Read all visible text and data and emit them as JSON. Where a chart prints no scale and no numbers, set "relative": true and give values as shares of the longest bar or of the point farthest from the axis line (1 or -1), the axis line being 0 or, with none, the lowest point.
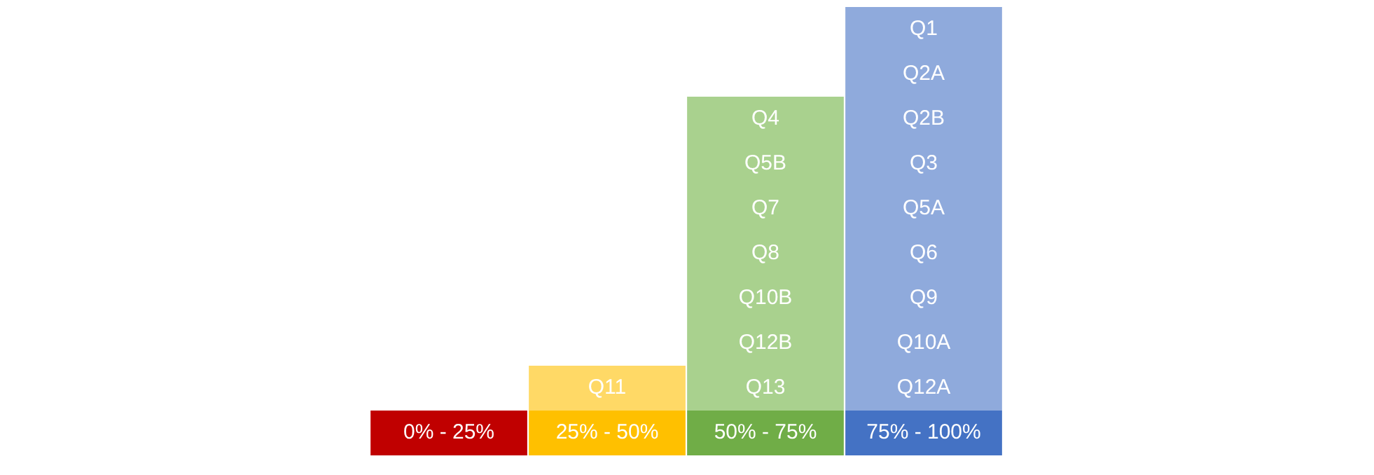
{
  "chart_data": {
    "type": "bar",
    "stacked": true,
    "relative": true,
    "categories": [
      "0% - 25%",
      "25% - 50%",
      "50% - 75%",
      "75% - 100%"
    ],
    "series": [
      {
        "values": [
          0.1,
          0.1,
          0.1,
          0.1
        ],
        "colors": [
          "#c00000",
          "#ffc000",
          "#70ad47",
          "#4472c4"
        ]
      },
      {
        "values": [
          null,
          0.1,
          0.1,
          0.1
        ],
        "colors": [
          "#ff9999",
          "#ffd966",
          "#a9d18e",
          "#8faadc"
        ]
      },
      {
        "values": [
          null,
          null,
          0.1,
          0.1
        ],
        "colors": [
          "#ff9999",
          "#ffd966",
          "#a9d18e",
          "#8faadc"
        ]
      },
      {
        "values": [
          null,
          null,
          0.1,
          0.1
        ],
        "colors": [
          "#ff9999",
          "#ffd966",
          "#a9d18e",
          "#8faadc"
        ]
      },
      {
        "values": [
          null,
          null,
          0.1,
          0.1
        ],
        "colors": [
          "#ff9999",
          "#ffd966",
          "#a9d18e",
          "#8faadc"
        ]
      },
      {
        "values": [
          null,
          null,
          0.1,
          0.1
        ],
        "colors": [
          "#ff9999",
          "#ffd966",
          "#a9d18e",
          "#8faadc"
        ]
      },
      {
        "values": [
          null,
          null,
          0.1,
          0.1
        ],
        "colors": [
          "#ff9999",
          "#ffd966",
          "#a9d18e",
          "#8faadc"
        ]
      },
      {
        "values": [
          null,
          null,
          0.1,
          0.1
        ],
        "colors": [
          "#ff9999",
          "#ffd966",
          "#a9d18e",
          "#8faadc"
        ]
      },
      {
        "values": [
          null,
          null,
          null,
          0.1
        ],
        "colors": [
          "#ff9999",
          "#ffd966",
          "#a9d18e",
          "#8faadc"
        ]
      },
      {
        "values": [
          null,
          null,
          null,
          0.1
        ],
        "colors": [
          "#ff9999",
          "#ffd966",
          "#a9d18e",
          "#8faadc"
        ]
      }
    ],
    "annotations": [
      "Q11",
      "Q13",
      "Q12A",
      "Q12B",
      "Q10A",
      "Q10B",
      "Q9",
      "Q8",
      "Q6",
      "Q7",
      "Q5A",
      "Q5B",
      "Q3",
      "Q4",
      "Q2B",
      "Q2A",
      "Q1"
    ]
  }
}
